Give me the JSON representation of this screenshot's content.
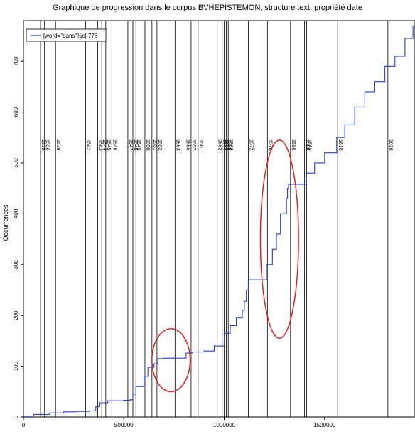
{
  "chart_data": {
    "type": "line",
    "title": "Graphique de progression dans le corpus BVHEPISTEMON, structure text, propriété date",
    "xlabel": "",
    "ylabel": "Occurrences",
    "xlim": [
      0,
      1950000
    ],
    "ylim": [
      0,
      780
    ],
    "x_ticks": [
      0,
      500000,
      1000000,
      1500000
    ],
    "x_tick_labels": [
      "0",
      "500000",
      "1000000",
      "1500000"
    ],
    "y_ticks": [
      0,
      100,
      200,
      300,
      400,
      500,
      600,
      700
    ],
    "y_tick_labels": [
      "0",
      "100",
      "200",
      "300",
      "400",
      "500",
      "600",
      "700"
    ],
    "legend": {
      "position": "top-left",
      "entries": [
        {
          "label": "[word=\"dans\"%c] 776",
          "color": "#1f3fdd"
        }
      ]
    },
    "series": [
      {
        "name": "[word=\"dans\"%c] 776",
        "color": "#1f3fdd",
        "x": [
          0,
          50000,
          130000,
          200000,
          260000,
          330000,
          360000,
          380000,
          420000,
          500000,
          530000,
          545000,
          560000,
          600000,
          620000,
          650000,
          670000,
          700000,
          800000,
          810000,
          840000,
          900000,
          950000,
          1000000,
          1030000,
          1060000,
          1090000,
          1100000,
          1110000,
          1120000,
          1200000,
          1210000,
          1240000,
          1260000,
          1280000,
          1310000,
          1315000,
          1320000,
          1400000,
          1410000,
          1450000,
          1500000,
          1560000,
          1600000,
          1650000,
          1700000,
          1750000,
          1800000,
          1850000,
          1900000,
          1940000
        ],
        "y": [
          2,
          5,
          8,
          10,
          11,
          12,
          20,
          28,
          32,
          33,
          34,
          45,
          60,
          80,
          98,
          105,
          115,
          116,
          116,
          126,
          128,
          130,
          140,
          165,
          180,
          195,
          210,
          228,
          250,
          270,
          270,
          300,
          330,
          360,
          400,
          430,
          450,
          458,
          458,
          480,
          500,
          520,
          550,
          575,
          610,
          640,
          660,
          690,
          710,
          745,
          770
        ]
      }
    ],
    "section_markers": [
      {
        "x": 85000,
        "label": "1535"
      },
      {
        "x": 105000,
        "label": "1536"
      },
      {
        "x": 160000,
        "label": "1538"
      },
      {
        "x": 310000,
        "label": "1542"
      },
      {
        "x": 370000,
        "label": "1543"
      },
      {
        "x": 390000,
        "label": "1544"
      },
      {
        "x": 410000,
        "label": "1545"
      },
      {
        "x": 440000,
        "label": "1546"
      },
      {
        "x": 520000,
        "label": "1547"
      },
      {
        "x": 545000,
        "label": "1548"
      },
      {
        "x": 560000,
        "label": "1549"
      },
      {
        "x": 605000,
        "label": "1550"
      },
      {
        "x": 640000,
        "label": "1551"
      },
      {
        "x": 665000,
        "label": "1552"
      },
      {
        "x": 755000,
        "label": "1553"
      },
      {
        "x": 805000,
        "label": "1555"
      },
      {
        "x": 835000,
        "label": "1557"
      },
      {
        "x": 870000,
        "label": "1561"
      },
      {
        "x": 965000,
        "label": "1562"
      },
      {
        "x": 990000,
        "label": "1564"
      },
      {
        "x": 1000000,
        "label": "1565"
      },
      {
        "x": 1010000,
        "label": "1566"
      },
      {
        "x": 1020000,
        "label": "1568"
      },
      {
        "x": 1120000,
        "label": "1572"
      },
      {
        "x": 1215000,
        "label": "1578"
      },
      {
        "x": 1330000,
        "label": "1586"
      },
      {
        "x": 1400000,
        "label": "1588"
      },
      {
        "x": 1410000,
        "label": "1589"
      },
      {
        "x": 1565000,
        "label": "1610"
      },
      {
        "x": 1815000,
        "label": "1616"
      }
    ],
    "annotations": [
      {
        "type": "ellipse",
        "color": "#e02020",
        "cx": 735000,
        "cy": 112,
        "rx": 95000,
        "ry": 62
      },
      {
        "type": "ellipse",
        "color": "#e02020",
        "cx": 1275000,
        "cy": 350,
        "rx": 95000,
        "ry": 195
      }
    ],
    "grid": false
  }
}
